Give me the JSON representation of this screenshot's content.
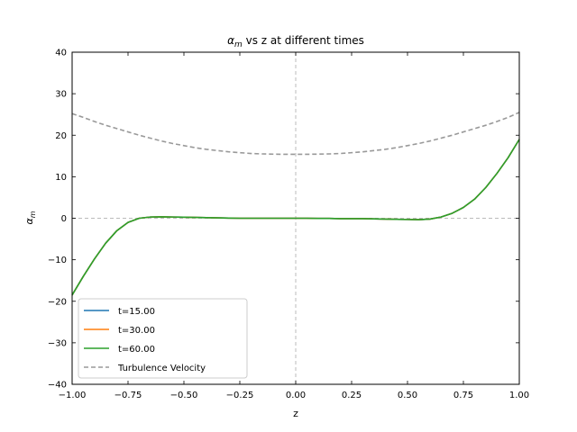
{
  "chart_data": {
    "type": "line",
    "title_prefix": "α",
    "title_sub": "m",
    "title_suffix": " vs z at different times",
    "xlabel": "z",
    "ylabel_main": "α",
    "ylabel_sub": "m",
    "xlim": [
      -1.0,
      1.0
    ],
    "ylim": [
      -40,
      40
    ],
    "xticks": [
      "−1.00",
      "−0.75",
      "−0.50",
      "−0.25",
      "0.00",
      "0.25",
      "0.50",
      "0.75",
      "1.00"
    ],
    "yticks": [
      "−40",
      "−30",
      "−20",
      "−10",
      "0",
      "10",
      "20",
      "30",
      "40"
    ],
    "xtick_values": [
      -1.0,
      -0.75,
      -0.5,
      -0.25,
      0.0,
      0.25,
      0.5,
      0.75,
      1.0
    ],
    "ytick_values": [
      -40,
      -30,
      -20,
      -10,
      0,
      10,
      20,
      30,
      40
    ],
    "grid": false,
    "reference_lines": {
      "x": 0.0,
      "y": 0.0
    },
    "legend_position": "lower-left",
    "x": [
      -1.0,
      -0.95,
      -0.9,
      -0.85,
      -0.8,
      -0.75,
      -0.7,
      -0.65,
      -0.6,
      -0.55,
      -0.5,
      -0.45,
      -0.4,
      -0.35,
      -0.3,
      -0.25,
      -0.2,
      -0.15,
      -0.1,
      -0.05,
      0.0,
      0.05,
      0.1,
      0.15,
      0.2,
      0.25,
      0.3,
      0.35,
      0.4,
      0.45,
      0.5,
      0.55,
      0.6,
      0.65,
      0.7,
      0.75,
      0.8,
      0.85,
      0.9,
      0.95,
      1.0
    ],
    "series": [
      {
        "name": "t=15.00",
        "color": "#1f77b4",
        "style": "solid",
        "values": [
          -18.5,
          -14.0,
          -9.8,
          -6.0,
          -3.0,
          -1.0,
          0.0,
          0.3,
          0.35,
          0.3,
          0.25,
          0.2,
          0.15,
          0.1,
          0.05,
          0.0,
          0.0,
          0.0,
          0.0,
          0.0,
          0.0,
          0.0,
          -0.05,
          -0.05,
          -0.1,
          -0.1,
          -0.1,
          -0.15,
          -0.2,
          -0.25,
          -0.3,
          -0.35,
          -0.2,
          0.3,
          1.2,
          2.6,
          4.6,
          7.4,
          10.8,
          14.6,
          19.0
        ]
      },
      {
        "name": "t=30.00",
        "color": "#ff7f0e",
        "style": "solid",
        "values": [
          -18.5,
          -14.0,
          -9.8,
          -6.0,
          -3.0,
          -1.0,
          0.0,
          0.3,
          0.35,
          0.3,
          0.25,
          0.2,
          0.15,
          0.1,
          0.05,
          0.0,
          0.0,
          0.0,
          0.0,
          0.0,
          0.0,
          0.0,
          -0.05,
          -0.05,
          -0.1,
          -0.1,
          -0.1,
          -0.15,
          -0.2,
          -0.25,
          -0.3,
          -0.35,
          -0.2,
          0.3,
          1.2,
          2.6,
          4.6,
          7.4,
          10.8,
          14.6,
          19.0
        ]
      },
      {
        "name": "t=60.00",
        "color": "#2ca02c",
        "style": "solid",
        "values": [
          -18.5,
          -14.0,
          -9.8,
          -6.0,
          -3.0,
          -1.0,
          0.0,
          0.3,
          0.35,
          0.3,
          0.25,
          0.2,
          0.15,
          0.1,
          0.05,
          0.0,
          0.0,
          0.0,
          0.0,
          0.0,
          0.0,
          0.0,
          -0.05,
          -0.05,
          -0.1,
          -0.1,
          -0.1,
          -0.15,
          -0.2,
          -0.25,
          -0.3,
          -0.35,
          -0.2,
          0.3,
          1.2,
          2.6,
          4.6,
          7.4,
          10.8,
          14.6,
          19.0
        ]
      },
      {
        "name": "Turbulence Velocity",
        "color": "#999999",
        "style": "dashed",
        "values": [
          25.2,
          24.3,
          23.3,
          22.4,
          21.6,
          20.8,
          20.0,
          19.3,
          18.6,
          18.0,
          17.5,
          17.0,
          16.6,
          16.3,
          16.0,
          15.8,
          15.6,
          15.5,
          15.45,
          15.4,
          15.4,
          15.4,
          15.45,
          15.5,
          15.6,
          15.8,
          16.0,
          16.3,
          16.6,
          17.0,
          17.5,
          18.0,
          18.6,
          19.3,
          20.0,
          20.8,
          21.6,
          22.4,
          23.3,
          24.3,
          25.5
        ]
      }
    ]
  }
}
